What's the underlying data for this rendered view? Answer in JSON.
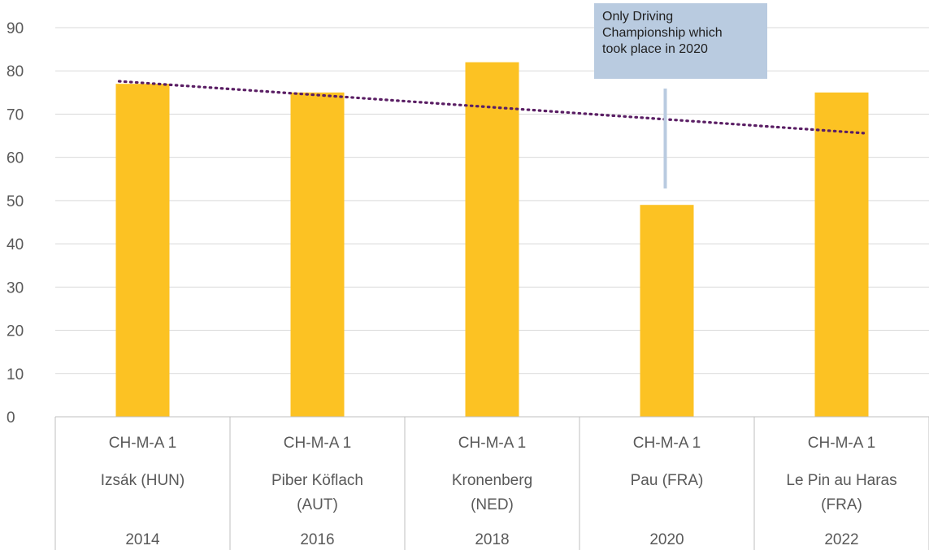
{
  "chart_data": {
    "type": "bar",
    "categories": [
      {
        "level": "CH-M-A 1",
        "venue": [
          "Izsák (HUN)"
        ],
        "year": "2014"
      },
      {
        "level": "CH-M-A 1",
        "venue": [
          "Piber Köflach",
          "(AUT)"
        ],
        "year": "2016"
      },
      {
        "level": "CH-M-A 1",
        "venue": [
          "Kronenberg",
          "(NED)"
        ],
        "year": "2018"
      },
      {
        "level": "CH-M-A 1",
        "venue": [
          "Pau (FRA)"
        ],
        "year": "2020"
      },
      {
        "level": "CH-M-A 1",
        "venue": [
          "Le Pin au Haras",
          "(FRA)"
        ],
        "year": "2022"
      }
    ],
    "values": [
      77,
      75,
      82,
      49,
      75
    ],
    "ylim": [
      0,
      90
    ],
    "yticks": [
      0,
      10,
      20,
      30,
      40,
      50,
      60,
      70,
      80,
      90
    ],
    "grid": true,
    "trendline": {
      "type": "linear",
      "style": "dotted",
      "start": 77.6,
      "end": 65.6
    },
    "annotation": {
      "lines": [
        "Only Driving",
        "Championship which",
        "took place in 2020"
      ],
      "points_to": "2020"
    },
    "colors": {
      "bar": "#fcc223",
      "trend": "#5a1e64",
      "callout": "#b9cbe0",
      "grid": "#d9d9d9"
    }
  }
}
